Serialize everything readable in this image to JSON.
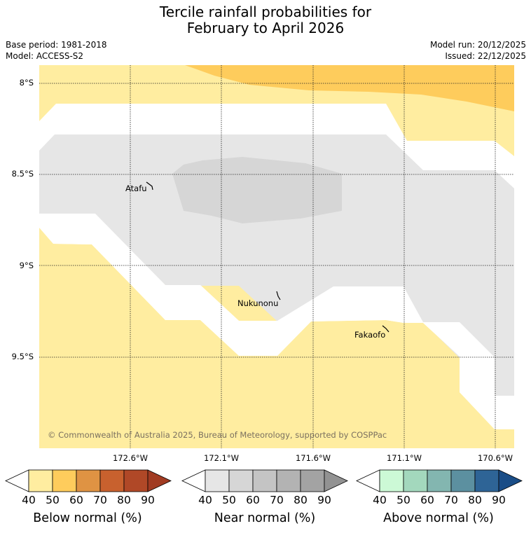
{
  "title": {
    "line1": "Tercile rainfall probabilities for",
    "line2": "February to April 2026"
  },
  "meta": {
    "base_period": "Base period: 1981-2018",
    "model": "Model: ACCESS-S2",
    "model_run": "Model run: 20/12/2025",
    "issued": "Issued: 22/12/2025"
  },
  "map": {
    "lat_labels": [
      "8°S",
      "8.5°S",
      "9°S",
      "9.5°S"
    ],
    "lon_labels": [
      "172.6°W",
      "172.1°W",
      "171.6°W",
      "171.1°W",
      "170.6°W"
    ],
    "places": {
      "atafu": "Atafu",
      "nukunonu": "Nukunonu",
      "fakaofo": "Fakaofo"
    },
    "copyright": "© Commonwealth of Australia 2025, Bureau of Meteorology, supported by COSPPac"
  },
  "colorbars": [
    {
      "name": "below",
      "title": "Below normal (%)",
      "ticks": [
        "40",
        "50",
        "60",
        "70",
        "80",
        "90"
      ],
      "colors": [
        "#ffffff",
        "#ffeda0",
        "#fecc5c",
        "#df9343",
        "#c8612e",
        "#b04827",
        "#a13b22"
      ]
    },
    {
      "name": "near",
      "title": "Near normal (%)",
      "ticks": [
        "40",
        "50",
        "60",
        "70",
        "80",
        "90"
      ],
      "colors": [
        "#ffffff",
        "#e6e6e6",
        "#d6d6d6",
        "#c4c4c4",
        "#b3b3b3",
        "#a3a3a3",
        "#929292"
      ]
    },
    {
      "name": "above",
      "title": "Above normal (%)",
      "ticks": [
        "40",
        "50",
        "60",
        "70",
        "80",
        "90"
      ],
      "colors": [
        "#ffffff",
        "#ccf9d6",
        "#a3d8bd",
        "#83b6b0",
        "#5c90a0",
        "#2e6496",
        "#1a4d87"
      ]
    }
  ]
}
